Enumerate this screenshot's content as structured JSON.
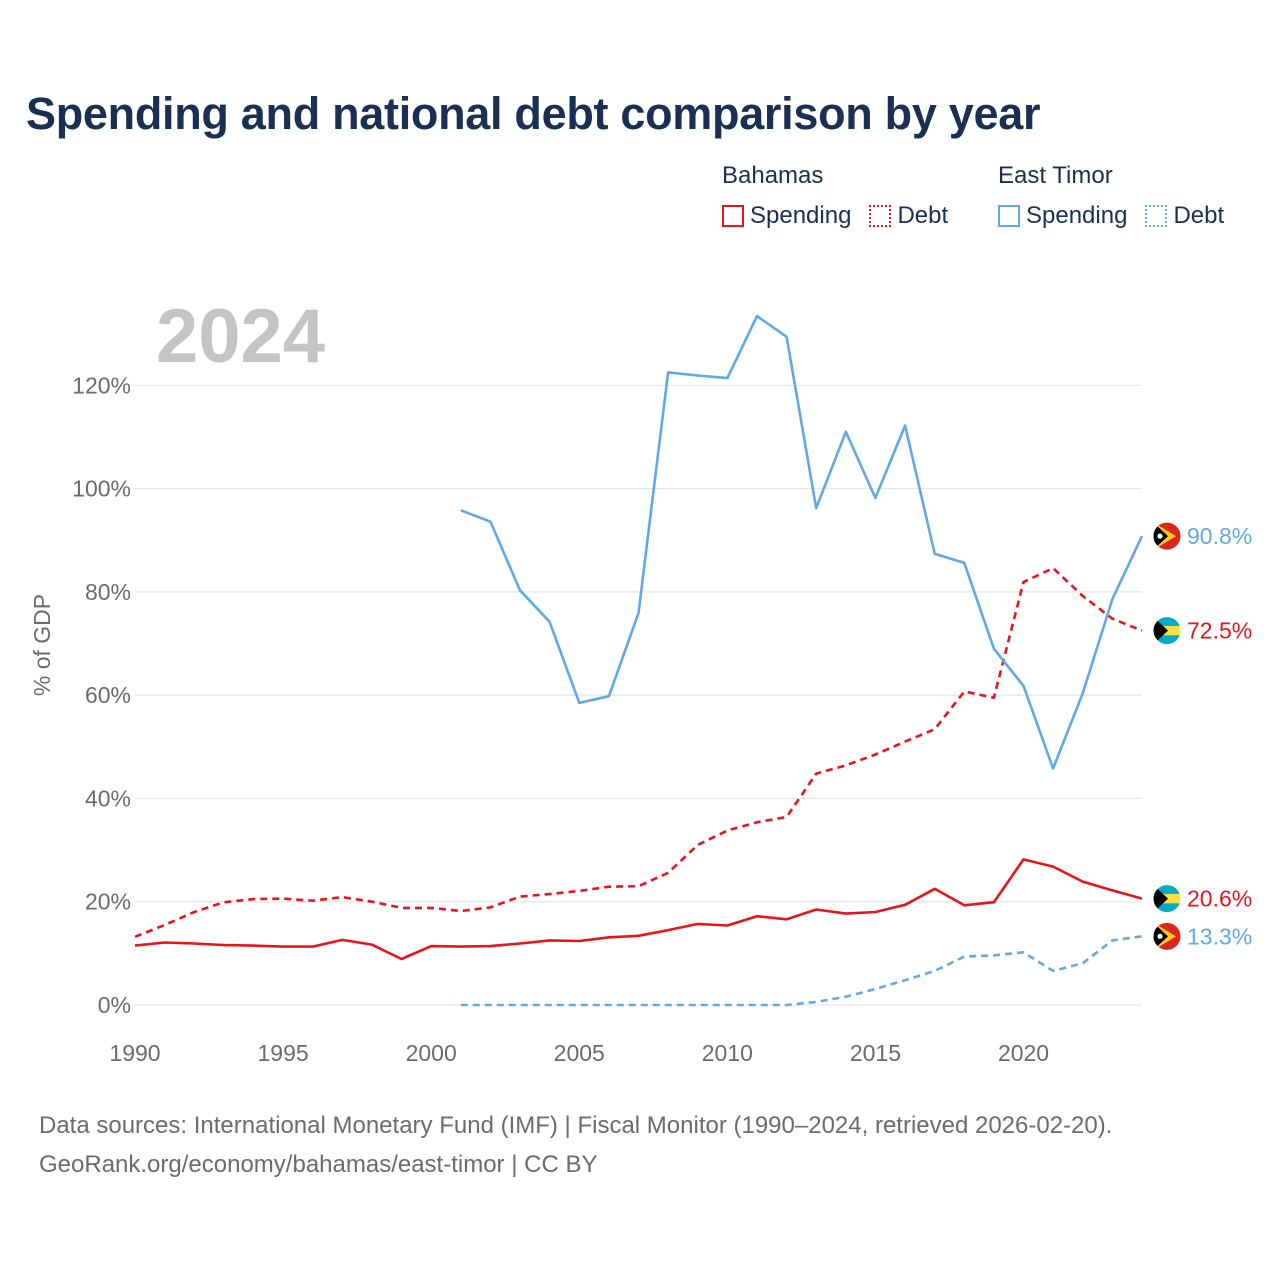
{
  "chart_data": {
    "type": "line",
    "title": "Spending and national debt comparison by year",
    "year_watermark": "2024",
    "ylabel": "% of GDP",
    "xlabel": "",
    "xlim": [
      1990,
      2024
    ],
    "ylim": [
      0,
      134
    ],
    "x_ticks": [
      1990,
      1995,
      2000,
      2005,
      2010,
      2015,
      2020
    ],
    "y_ticks": [
      0,
      20,
      40,
      60,
      80,
      100,
      120
    ],
    "y_tick_suffix": "%",
    "grid": true,
    "legend": {
      "groups": [
        {
          "name": "Bahamas",
          "items": [
            {
              "label": "Spending",
              "color": "#e8141c",
              "style": "solid"
            },
            {
              "label": "Debt",
              "color": "#e8141c",
              "style": "dotted"
            }
          ]
        },
        {
          "name": "East Timor",
          "items": [
            {
              "label": "Spending",
              "color": "#62a8e5",
              "style": "solid"
            },
            {
              "label": "Debt",
              "color": "#62a8e5",
              "style": "dotted"
            }
          ]
        }
      ]
    },
    "series": [
      {
        "name": "Bahamas Spending",
        "country": "Bahamas",
        "color": "#e8141c",
        "dash": false,
        "x": [
          1990,
          1991,
          1992,
          1993,
          1994,
          1995,
          1996,
          1997,
          1998,
          1999,
          2000,
          2001,
          2002,
          2003,
          2004,
          2005,
          2006,
          2007,
          2008,
          2009,
          2010,
          2011,
          2012,
          2013,
          2014,
          2015,
          2016,
          2017,
          2018,
          2019,
          2020,
          2021,
          2022,
          2023,
          2024
        ],
        "values": [
          11.5,
          12.1,
          11.9,
          11.6,
          11.5,
          11.3,
          11.3,
          12.6,
          11.7,
          8.9,
          11.4,
          11.3,
          11.4,
          11.9,
          12.5,
          12.4,
          13.1,
          13.4,
          14.5,
          15.7,
          15.4,
          17.2,
          16.6,
          18.5,
          17.7,
          18.0,
          19.4,
          22.5,
          19.3,
          19.9,
          28.2,
          26.8,
          23.9,
          22.2,
          20.6
        ],
        "end_label": "20.6%"
      },
      {
        "name": "Bahamas Debt",
        "country": "Bahamas",
        "color": "#e8141c",
        "dash": true,
        "x": [
          1990,
          1991,
          1992,
          1993,
          1994,
          1995,
          1996,
          1997,
          1998,
          1999,
          2000,
          2001,
          2002,
          2003,
          2004,
          2005,
          2006,
          2007,
          2008,
          2009,
          2010,
          2011,
          2012,
          2013,
          2014,
          2015,
          2016,
          2017,
          2018,
          2019,
          2020,
          2021,
          2022,
          2023,
          2024
        ],
        "values": [
          13.2,
          15.5,
          18.0,
          19.9,
          20.5,
          20.6,
          20.2,
          20.9,
          20.0,
          18.8,
          18.8,
          18.2,
          18.9,
          21.0,
          21.5,
          22.1,
          22.9,
          23.0,
          25.6,
          31.0,
          33.8,
          35.4,
          36.4,
          44.8,
          46.4,
          48.5,
          51.0,
          53.4,
          60.7,
          59.5,
          81.9,
          84.6,
          79.2,
          74.8,
          72.5
        ],
        "end_label": "72.5%"
      },
      {
        "name": "East Timor Spending",
        "country": "East Timor",
        "color": "#62a8e5",
        "dash": false,
        "x": [
          2001,
          2002,
          2003,
          2004,
          2005,
          2006,
          2007,
          2008,
          2009,
          2010,
          2011,
          2012,
          2013,
          2014,
          2015,
          2016,
          2017,
          2018,
          2019,
          2020,
          2021,
          2022,
          2023,
          2024
        ],
        "values": [
          95.8,
          93.6,
          80.3,
          74.2,
          58.5,
          59.8,
          75.9,
          122.5,
          121.9,
          121.4,
          133.4,
          129.4,
          96.2,
          111.0,
          98.2,
          112.2,
          87.4,
          85.6,
          69.0,
          61.8,
          45.8,
          60.4,
          78.6,
          90.8
        ],
        "end_label": "90.8%"
      },
      {
        "name": "East Timor Debt",
        "country": "East Timor",
        "color": "#62a8e5",
        "dash": true,
        "x": [
          2001,
          2002,
          2003,
          2004,
          2005,
          2006,
          2007,
          2008,
          2009,
          2010,
          2011,
          2012,
          2013,
          2014,
          2015,
          2016,
          2017,
          2018,
          2019,
          2020,
          2021,
          2022,
          2023,
          2024
        ],
        "values": [
          0,
          0,
          0,
          0,
          0,
          0,
          0,
          0,
          0,
          0,
          0,
          0,
          0.6,
          1.6,
          3.1,
          4.8,
          6.6,
          9.4,
          9.6,
          10.2,
          6.6,
          8.1,
          12.5,
          13.3
        ],
        "end_label": "13.3%"
      }
    ]
  },
  "footer": {
    "line1": "Data sources: International Monetary Fund (IMF) | Fiscal Monitor (1990–2024, retrieved 2026-02-20).",
    "line2": "GeoRank.org/economy/bahamas/east-timor | CC BY"
  }
}
